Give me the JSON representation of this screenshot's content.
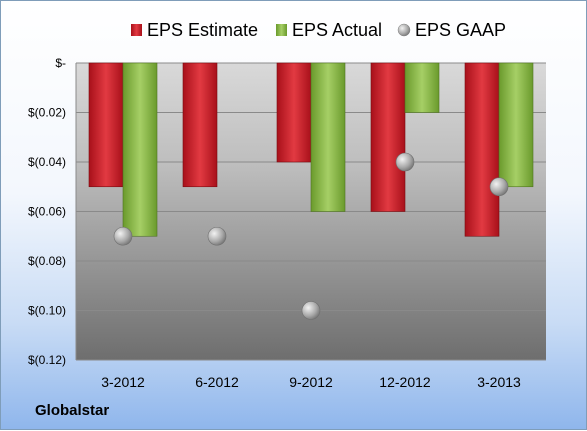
{
  "chart_data": {
    "type": "bar",
    "categories": [
      "3-2012",
      "6-2012",
      "9-2012",
      "12-2012",
      "3-2013"
    ],
    "series": [
      {
        "name": "EPS Estimate",
        "values": [
          -0.05,
          -0.05,
          -0.04,
          -0.06,
          -0.07
        ],
        "color": "#d0202a",
        "kind": "bar"
      },
      {
        "name": "EPS Actual",
        "values": [
          -0.07,
          null,
          -0.06,
          -0.02,
          -0.05
        ],
        "color": "#8cb84a",
        "kind": "bar"
      },
      {
        "name": "EPS GAAP",
        "values": [
          -0.07,
          -0.07,
          -0.1,
          -0.04,
          -0.05
        ],
        "color": "#a0a0a0",
        "kind": "marker"
      }
    ],
    "y_ticks": [
      "$-",
      "$(0.02)",
      "$(0.04)",
      "$(0.06)",
      "$(0.08)",
      "$(0.10)",
      "$(0.12)"
    ],
    "y_tick_values": [
      0,
      -0.02,
      -0.04,
      -0.06,
      -0.08,
      -0.1,
      -0.12
    ],
    "ylim": [
      -0.12,
      0
    ],
    "grid": true,
    "legend": "top"
  },
  "footer": {
    "company": "Globalstar"
  }
}
